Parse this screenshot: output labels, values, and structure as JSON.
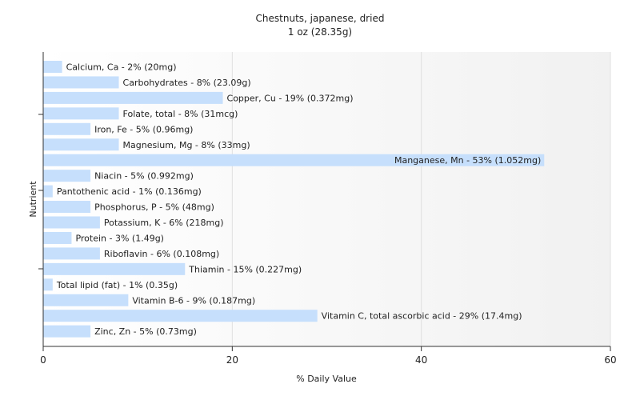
{
  "chart_data": {
    "type": "bar",
    "orientation": "horizontal",
    "title": "Chestnuts, japanese, dried",
    "subtitle": "1 oz (28.35g)",
    "xlabel": "% Daily Value",
    "ylabel": "Nutrient",
    "xlim": [
      0,
      60
    ],
    "xticks": [
      0,
      20,
      40,
      60
    ],
    "grid": true,
    "bar_color": "#c6dffc",
    "categories": [
      "Calcium, Ca",
      "Carbohydrates",
      "Copper, Cu",
      "Folate, total",
      "Iron, Fe",
      "Magnesium, Mg",
      "Manganese, Mn",
      "Niacin",
      "Pantothenic acid",
      "Phosphorus, P",
      "Potassium, K",
      "Protein",
      "Riboflavin",
      "Thiamin",
      "Total lipid (fat)",
      "Vitamin B-6",
      "Vitamin C, total ascorbic acid",
      "Zinc, Zn"
    ],
    "values": [
      2,
      8,
      19,
      8,
      5,
      8,
      53,
      5,
      1,
      5,
      6,
      3,
      6,
      15,
      1,
      9,
      29,
      5
    ],
    "labels": [
      "Calcium, Ca - 2% (20mg)",
      "Carbohydrates - 8% (23.09g)",
      "Copper, Cu - 19% (0.372mg)",
      "Folate, total - 8% (31mcg)",
      "Iron, Fe - 5% (0.96mg)",
      "Magnesium, Mg - 8% (33mg)",
      "Manganese, Mn - 53% (1.052mg)",
      "Niacin - 5% (0.992mg)",
      "Pantothenic acid - 1% (0.136mg)",
      "Phosphorus, P - 5% (48mg)",
      "Potassium, K - 6% (218mg)",
      "Protein - 3% (1.49g)",
      "Riboflavin - 6% (0.108mg)",
      "Thiamin - 15% (0.227mg)",
      "Total lipid (fat) - 1% (0.35g)",
      "Vitamin B-6 - 9% (0.187mg)",
      "Vitamin C, total ascorbic acid - 29% (17.4mg)",
      "Zinc, Zn - 5% (0.73mg)"
    ]
  }
}
